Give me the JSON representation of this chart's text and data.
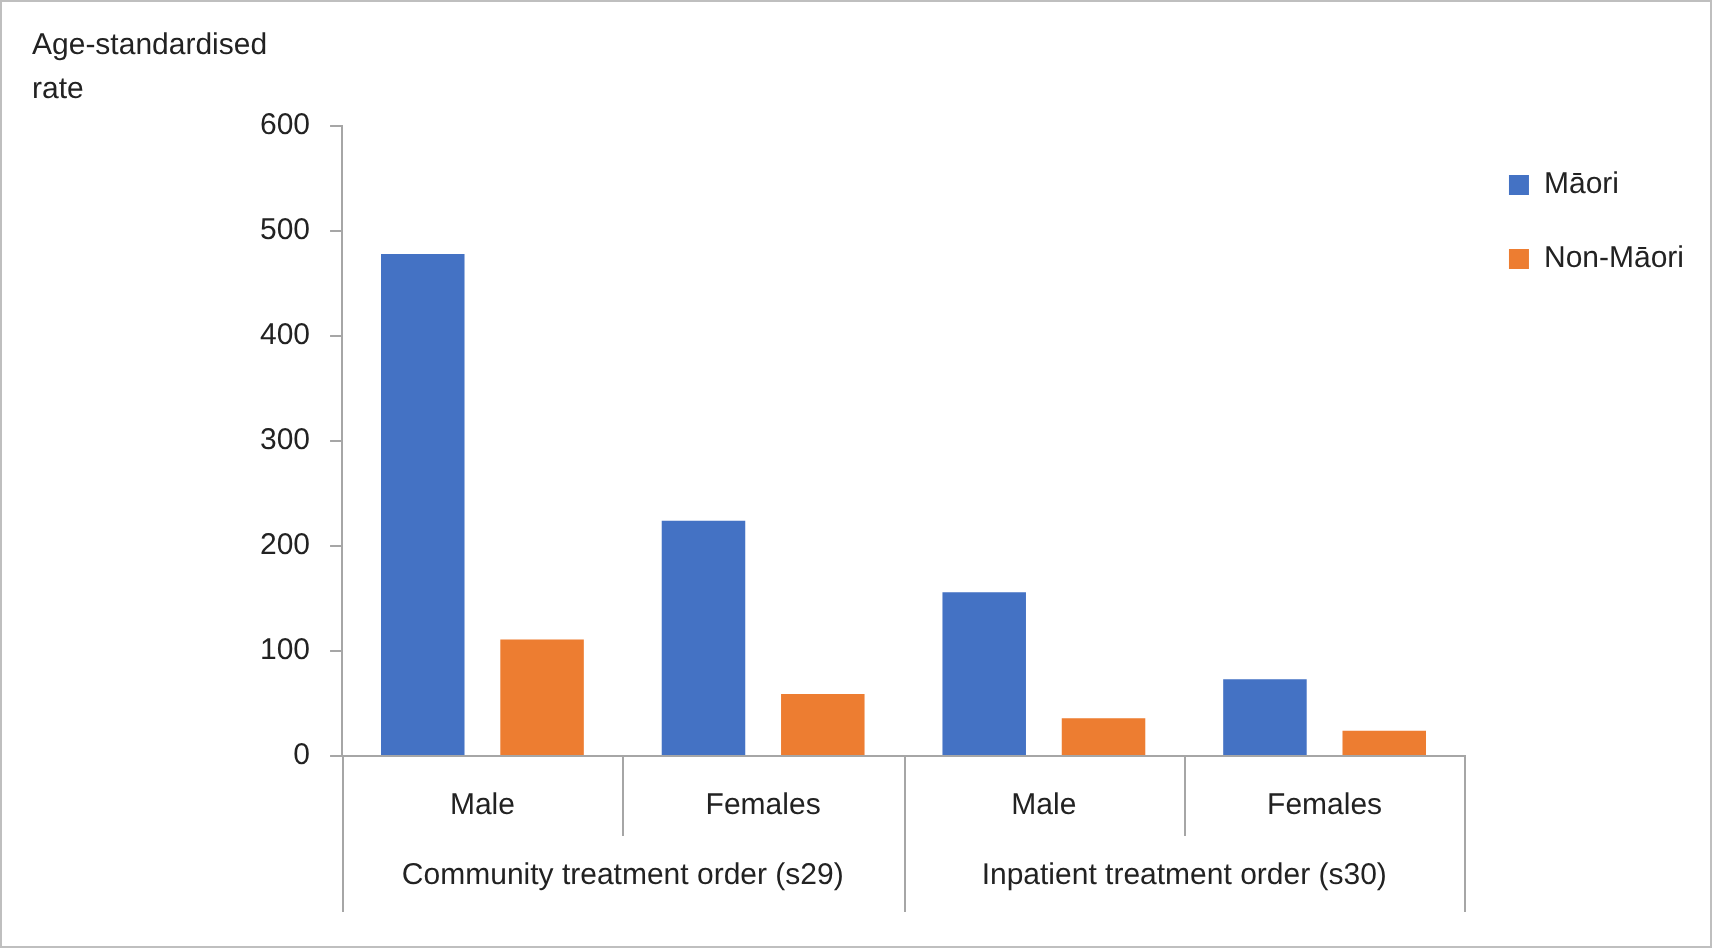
{
  "chart_data": {
    "type": "bar",
    "ylabel": "Age-standardised rate",
    "categories": [
      "Male",
      "Females",
      "Male",
      "Females"
    ],
    "series": [
      {
        "name": "Māori",
        "color": "#4472c4",
        "values": [
          478,
          224,
          156,
          73
        ]
      },
      {
        "name": "Non-Māori",
        "color": "#ed7d31",
        "values": [
          111,
          59,
          36,
          24
        ]
      }
    ],
    "ylim": [
      0,
      600
    ],
    "yticks": [
      0,
      100,
      200,
      300,
      400,
      500,
      600
    ],
    "grid": false,
    "legend": "right",
    "annotations": [
      "Community treatment order (s29)",
      "Inpatient treatment order (s30)"
    ]
  }
}
